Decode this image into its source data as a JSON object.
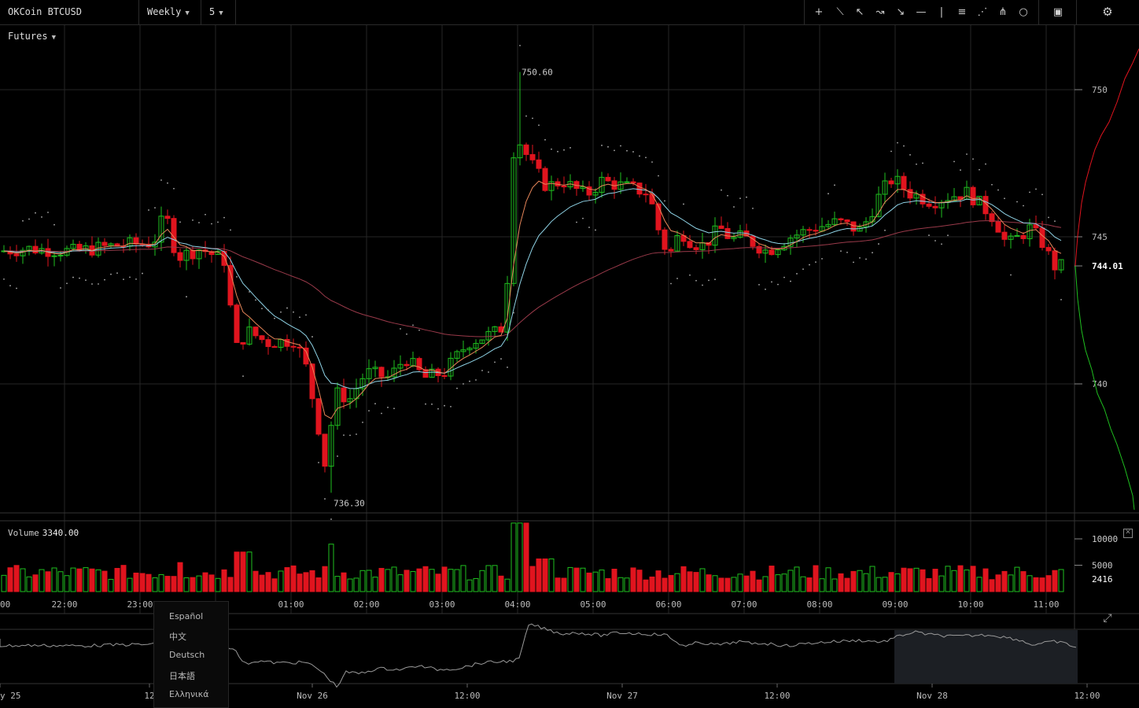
{
  "toolbar": {
    "symbol": "OKCoin BTCUSD Futures",
    "period": "Weekly",
    "interval": "5",
    "tools": [
      {
        "name": "crosshair-icon",
        "glyph": "+"
      },
      {
        "name": "trend-line-icon",
        "glyph": "⟍"
      },
      {
        "name": "ray-icon",
        "glyph": "↖"
      },
      {
        "name": "fib-curve-icon",
        "glyph": "↝"
      },
      {
        "name": "arrow-icon",
        "glyph": "↘"
      },
      {
        "name": "horizontal-line-icon",
        "glyph": "—"
      },
      {
        "name": "vertical-line-icon",
        "glyph": "|"
      },
      {
        "name": "parallel-lines-icon",
        "glyph": "≡"
      },
      {
        "name": "fan-icon",
        "glyph": "⋰"
      },
      {
        "name": "pitchfork-icon",
        "glyph": "⋔"
      },
      {
        "name": "circle-icon",
        "glyph": "○"
      }
    ],
    "indicators_icon": "indicators-icon",
    "settings_icon": "gear-icon"
  },
  "colors": {
    "up": "#1fbf1f",
    "down": "#e0141e",
    "ema_fast": "#e8875a",
    "ema_mid": "#8fd3e6",
    "ema_slow": "#9a3a4a",
    "sar": "#aaaaaa",
    "grid": "#262626"
  },
  "price_axis": {
    "ticks": [
      "750",
      "745",
      "740"
    ],
    "current_price": "744.01"
  },
  "annotations": {
    "high": "750.60",
    "low": "736.30"
  },
  "volume": {
    "label": "Volume",
    "value": "3340.00",
    "axis_ticks": [
      "10000",
      "5000"
    ],
    "current": "2416"
  },
  "time_axis": [
    "00",
    "22:00",
    "23:00",
    "01:00",
    "02:00",
    "03:00",
    "04:00",
    "05:00",
    "06:00",
    "07:00",
    "08:00",
    "09:00",
    "10:00",
    "11:00"
  ],
  "navigator_axis": [
    "y 25",
    "12",
    "Nov 26",
    "12:00",
    "Nov 27",
    "12:00",
    "Nov 28",
    "12:00"
  ],
  "language_menu": [
    "Español",
    "中文",
    "Deutsch",
    "日本語",
    "Ελληνικά"
  ],
  "chart_data": {
    "type": "candlestick",
    "series": [
      {
        "name": "Volume"
      }
    ],
    "price_ticks": [
      750,
      745,
      740
    ],
    "ylim": [
      736,
      751.7
    ],
    "high": 750.6,
    "low": 736.3,
    "last": 744.01,
    "volume_ylim": [
      0,
      13000
    ],
    "volume_ticks": [
      10000,
      5000
    ],
    "interval_minutes": 5
  }
}
